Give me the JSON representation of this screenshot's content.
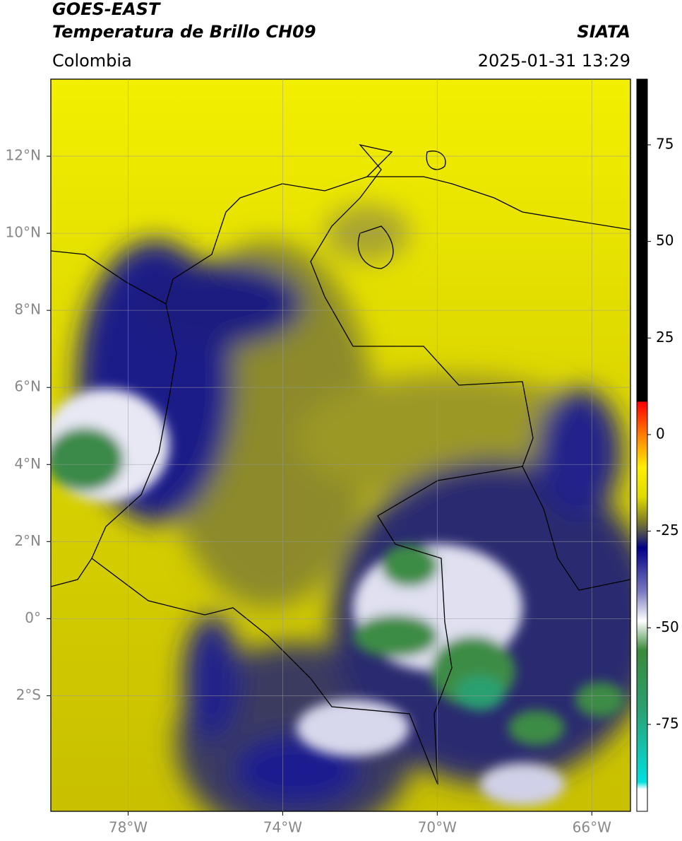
{
  "map": {
    "title": "GOES-EAST",
    "subtitle": "Temperatura de Brillo CH09",
    "source": "SIATA",
    "region": "Colombia",
    "timestamp": "2025-01-31 13:29",
    "xlim": [
      -80,
      -65
    ],
    "ylim": [
      -5,
      14
    ],
    "xticks": [
      {
        "value": -78,
        "label": "78°W"
      },
      {
        "value": -74,
        "label": "74°W"
      },
      {
        "value": -70,
        "label": "70°W"
      },
      {
        "value": -66,
        "label": "66°W"
      }
    ],
    "yticks": [
      {
        "value": 12,
        "label": "12°N"
      },
      {
        "value": 10,
        "label": "10°N"
      },
      {
        "value": 8,
        "label": "8°N"
      },
      {
        "value": 6,
        "label": "6°N"
      },
      {
        "value": 4,
        "label": "4°N"
      },
      {
        "value": 2,
        "label": "2°N"
      },
      {
        "value": 0,
        "label": "0°"
      },
      {
        "value": -2,
        "label": "2°S"
      }
    ],
    "colorbar": {
      "lim": [
        -97.5,
        92
      ],
      "ticks": [
        75,
        50,
        25,
        0,
        -25,
        -50,
        -75
      ]
    }
  }
}
